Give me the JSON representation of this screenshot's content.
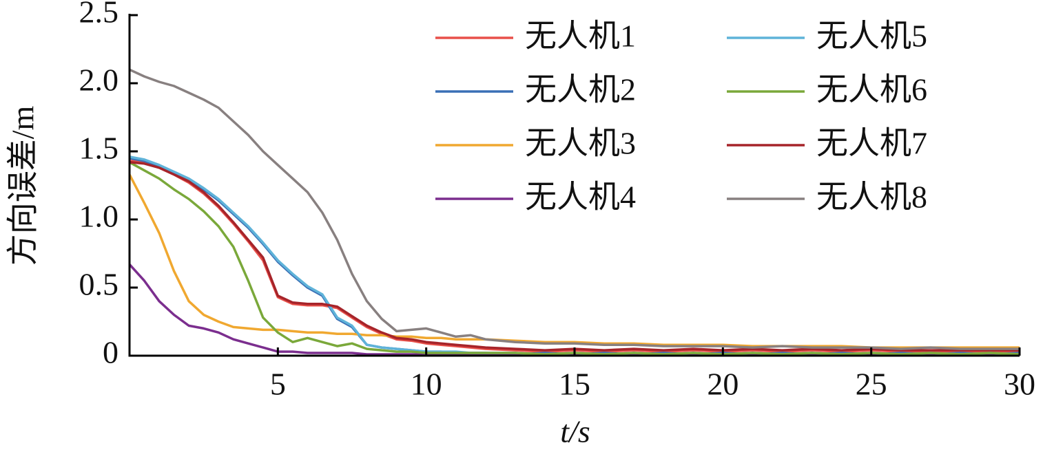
{
  "chart_data": {
    "type": "line",
    "xlabel": "t/s",
    "ylabel": "方向误差/m",
    "x": [
      0,
      0.5,
      1,
      1.5,
      2,
      2.5,
      3,
      3.5,
      4,
      4.5,
      5,
      5.5,
      6,
      6.5,
      7,
      7.5,
      8,
      8.5,
      9,
      9.5,
      10,
      10.5,
      11,
      11.5,
      12,
      13,
      14,
      15,
      16,
      17,
      18,
      19,
      20,
      21,
      22,
      23,
      24,
      25,
      26,
      27,
      28,
      29,
      30
    ],
    "xlim": [
      0,
      30
    ],
    "xticks": [
      5,
      10,
      15,
      20,
      25,
      30
    ],
    "ylim": [
      0,
      2.5
    ],
    "yticks": [
      0,
      0.5,
      {
        "value": 1,
        "label": "1.0"
      },
      1.5,
      {
        "value": 2,
        "label": "2.0"
      },
      2.5
    ],
    "legend": "upper-right",
    "series": [
      {
        "name": "无人机1",
        "color": "#e8504a",
        "values": [
          1.43,
          1.42,
          1.38,
          1.33,
          1.27,
          1.19,
          1.09,
          0.97,
          0.84,
          0.7,
          0.43,
          0.38,
          0.37,
          0.37,
          0.35,
          0.28,
          0.21,
          0.16,
          0.12,
          0.11,
          0.09,
          0.08,
          0.07,
          0.06,
          0.05,
          0.04,
          0.03,
          0.04,
          0.03,
          0.04,
          0.03,
          0.04,
          0.03,
          0.04,
          0.03,
          0.04,
          0.03,
          0.04,
          0.03,
          0.03,
          0.03,
          0.03,
          0.03
        ]
      },
      {
        "name": "无人机2",
        "color": "#3a6fb5",
        "values": [
          1.45,
          1.43,
          1.39,
          1.34,
          1.29,
          1.22,
          1.14,
          1.04,
          0.94,
          0.82,
          0.69,
          0.59,
          0.5,
          0.44,
          0.27,
          0.21,
          0.08,
          0.06,
          0.05,
          0.04,
          0.03,
          0.03,
          0.02,
          0.02,
          0.02,
          0.01,
          0.02,
          0.01,
          0.02,
          0.01,
          0.02,
          0.01,
          0.02,
          0.01,
          0.02,
          0.01,
          0.02,
          0.01,
          0.02,
          0.01,
          0.02,
          0.01,
          0.02
        ]
      },
      {
        "name": "无人机3",
        "color": "#f0a830",
        "values": [
          1.33,
          1.12,
          0.9,
          0.62,
          0.4,
          0.3,
          0.25,
          0.21,
          0.2,
          0.19,
          0.19,
          0.18,
          0.17,
          0.17,
          0.16,
          0.16,
          0.15,
          0.15,
          0.14,
          0.14,
          0.13,
          0.13,
          0.12,
          0.12,
          0.12,
          0.11,
          0.1,
          0.1,
          0.09,
          0.09,
          0.08,
          0.08,
          0.08,
          0.07,
          0.07,
          0.07,
          0.07,
          0.06,
          0.06,
          0.06,
          0.06,
          0.06,
          0.06
        ]
      },
      {
        "name": "无人机4",
        "color": "#7b2e8e",
        "values": [
          0.67,
          0.55,
          0.4,
          0.3,
          0.22,
          0.2,
          0.17,
          0.12,
          0.09,
          0.06,
          0.03,
          0.03,
          0.02,
          0.02,
          0.02,
          0.02,
          0.01,
          0.01,
          0.01,
          0.01,
          0.01,
          0.01,
          0.01,
          0.01,
          0.01,
          0.01,
          0.01,
          0.01,
          0.01,
          0.01,
          0.01,
          0.01,
          0.01,
          0.01,
          0.01,
          0.01,
          0.01,
          0.01,
          0.01,
          0.01,
          0.01,
          0.01,
          0.01
        ]
      },
      {
        "name": "无人机5",
        "color": "#5fb3d9",
        "values": [
          1.46,
          1.44,
          1.4,
          1.35,
          1.3,
          1.23,
          1.15,
          1.05,
          0.95,
          0.83,
          0.7,
          0.6,
          0.51,
          0.45,
          0.28,
          0.22,
          0.08,
          0.06,
          0.05,
          0.04,
          0.03,
          0.03,
          0.03,
          0.02,
          0.02,
          0.02,
          0.01,
          0.02,
          0.01,
          0.02,
          0.01,
          0.02,
          0.01,
          0.02,
          0.01,
          0.02,
          0.01,
          0.02,
          0.01,
          0.02,
          0.01,
          0.02,
          0.01
        ]
      },
      {
        "name": "无人机6",
        "color": "#7aa83a",
        "values": [
          1.42,
          1.36,
          1.3,
          1.22,
          1.15,
          1.06,
          0.95,
          0.8,
          0.55,
          0.28,
          0.17,
          0.1,
          0.13,
          0.1,
          0.07,
          0.09,
          0.05,
          0.04,
          0.03,
          0.03,
          0.02,
          0.02,
          0.02,
          0.02,
          0.02,
          0.02,
          0.01,
          0.02,
          0.01,
          0.02,
          0.01,
          0.02,
          0.01,
          0.02,
          0.01,
          0.02,
          0.01,
          0.02,
          0.01,
          0.02,
          0.01,
          0.02,
          0.01
        ]
      },
      {
        "name": "无人机7",
        "color": "#a6242a",
        "values": [
          1.42,
          1.41,
          1.38,
          1.33,
          1.28,
          1.2,
          1.1,
          0.98,
          0.85,
          0.72,
          0.44,
          0.39,
          0.38,
          0.38,
          0.36,
          0.29,
          0.22,
          0.17,
          0.13,
          0.12,
          0.1,
          0.09,
          0.08,
          0.07,
          0.06,
          0.05,
          0.04,
          0.05,
          0.04,
          0.05,
          0.04,
          0.05,
          0.04,
          0.05,
          0.04,
          0.05,
          0.04,
          0.05,
          0.04,
          0.04,
          0.04,
          0.04,
          0.04
        ]
      },
      {
        "name": "无人机8",
        "color": "#888080",
        "values": [
          2.1,
          2.05,
          2.01,
          1.98,
          1.93,
          1.88,
          1.82,
          1.72,
          1.62,
          1.5,
          1.4,
          1.3,
          1.2,
          1.05,
          0.85,
          0.6,
          0.4,
          0.27,
          0.18,
          0.19,
          0.2,
          0.17,
          0.14,
          0.15,
          0.12,
          0.1,
          0.09,
          0.09,
          0.08,
          0.08,
          0.07,
          0.07,
          0.07,
          0.06,
          0.07,
          0.06,
          0.06,
          0.06,
          0.05,
          0.06,
          0.05,
          0.05,
          0.05
        ]
      }
    ]
  }
}
